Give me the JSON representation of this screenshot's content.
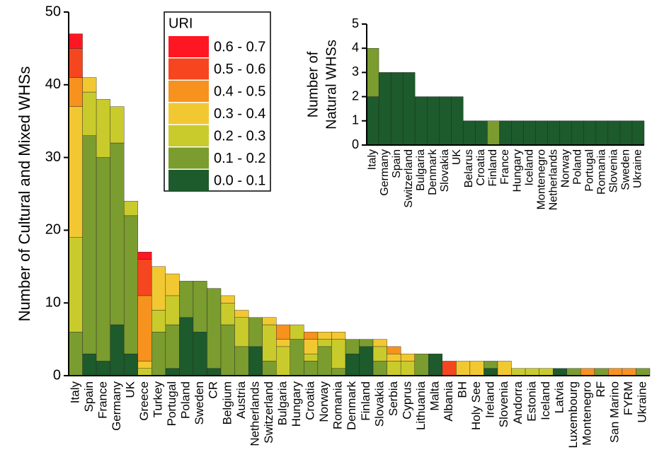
{
  "chart_data": [
    {
      "type": "bar",
      "stacked": true,
      "ylabel": "Number of Cultural and Mixed WHSs",
      "legend_title": "URI",
      "ylim": [
        0,
        50
      ],
      "yticks": [
        0,
        10,
        20,
        30,
        40,
        50
      ],
      "categories": [
        "Italy",
        "Spain",
        "France",
        "Germany",
        "UK",
        "Greece",
        "Turkey",
        "Portugal",
        "Poland",
        "Sweden",
        "CR",
        "Belgium",
        "Austria",
        "Netherlands",
        "Switzerland",
        "Bulgaria",
        "Hungary",
        "Croatia",
        "Norway",
        "Romania",
        "Denmark",
        "Finland",
        "Slovakia",
        "Serbia",
        "Cyprus",
        "Lithuania",
        "Malta",
        "Albania",
        "BH",
        "Holy See",
        "Ireland",
        "Slovenia",
        "Andorra",
        "Estonia",
        "Iceland",
        "Latvia",
        "Luxembourg",
        "Montenegro",
        "RF",
        "San Marino",
        "FYRM",
        "Ukraine"
      ],
      "series": [
        {
          "name": "0.0 - 0.1",
          "color": "#1d5a2c",
          "values": [
            0,
            3,
            2,
            7,
            3,
            0,
            0,
            1,
            8,
            6,
            1,
            0,
            0,
            4,
            0,
            0,
            0,
            0,
            0,
            0,
            3,
            4,
            0,
            0,
            0,
            0,
            3,
            0,
            0,
            0,
            1,
            0,
            0,
            0,
            0,
            1,
            0,
            0,
            0,
            0,
            0,
            0
          ]
        },
        {
          "name": "0.1 - 0.2",
          "color": "#7b9c2f",
          "values": [
            6,
            30,
            28,
            25,
            19,
            0,
            6,
            6,
            5,
            7,
            11,
            7,
            4,
            4,
            2,
            0,
            5,
            2,
            4,
            1,
            2,
            1,
            2,
            0,
            0,
            3,
            0,
            0,
            0,
            0,
            1,
            0,
            0,
            0,
            0,
            0,
            1,
            0,
            1,
            0,
            0,
            1
          ]
        },
        {
          "name": "0.2 - 0.3",
          "color": "#c9cb2c",
          "values": [
            13,
            6,
            8,
            5,
            2,
            1,
            3,
            4,
            0,
            0,
            0,
            3,
            4,
            0,
            5,
            4,
            2,
            1,
            1,
            4,
            0,
            0,
            2,
            2,
            2,
            0,
            0,
            0,
            0,
            0,
            0,
            0,
            1,
            1,
            1,
            0,
            0,
            0,
            0,
            0,
            0,
            0
          ]
        },
        {
          "name": "0.3 - 0.4",
          "color": "#f2c832",
          "values": [
            18,
            2,
            0,
            0,
            0,
            1,
            6,
            3,
            0,
            0,
            0,
            1,
            1,
            0,
            1,
            1,
            0,
            2,
            1,
            1,
            0,
            0,
            1,
            1,
            1,
            0,
            0,
            0,
            2,
            2,
            0,
            2,
            0,
            0,
            0,
            0,
            0,
            0,
            0,
            0,
            0,
            0
          ]
        },
        {
          "name": "0.4 - 0.5",
          "color": "#f7921e",
          "values": [
            4,
            0,
            0,
            0,
            0,
            9,
            0,
            0,
            0,
            0,
            0,
            0,
            0,
            0,
            0,
            2,
            0,
            1,
            0,
            0,
            0,
            0,
            0,
            1,
            0,
            0,
            0,
            0,
            0,
            0,
            0,
            0,
            0,
            0,
            0,
            0,
            0,
            1,
            0,
            1,
            1,
            0
          ]
        },
        {
          "name": "0.5 - 0.6",
          "color": "#f5461f",
          "values": [
            4,
            0,
            0,
            0,
            0,
            5,
            0,
            0,
            0,
            0,
            0,
            0,
            0,
            0,
            0,
            0,
            0,
            0,
            0,
            0,
            0,
            0,
            0,
            0,
            0,
            0,
            0,
            2,
            0,
            0,
            0,
            0,
            0,
            0,
            0,
            0,
            0,
            0,
            0,
            0,
            0,
            0
          ]
        },
        {
          "name": "0.6 - 0.7",
          "color": "#fe1722",
          "values": [
            2,
            0,
            0,
            0,
            0,
            1,
            0,
            0,
            0,
            0,
            0,
            0,
            0,
            0,
            0,
            0,
            0,
            0,
            0,
            0,
            0,
            0,
            0,
            0,
            0,
            0,
            0,
            0,
            0,
            0,
            0,
            0,
            0,
            0,
            0,
            0,
            0,
            0,
            0,
            0,
            0,
            0
          ]
        }
      ]
    },
    {
      "type": "bar",
      "stacked": true,
      "ylabel": [
        "Number of",
        "Natural WHSs"
      ],
      "ylim": [
        0,
        5
      ],
      "yticks": [
        0,
        1,
        2,
        3,
        4,
        5
      ],
      "categories": [
        "Italy",
        "Germany",
        "Spain",
        "Switzerland",
        "Bulgaria",
        "Denmark",
        "Slovakia",
        "UK",
        "Belarus",
        "Croatia",
        "Finland",
        "France",
        "Hungary",
        "Iceland",
        "Montenegro",
        "Netherlands",
        "Norway",
        "Poland",
        "Portugal",
        "Romania",
        "Slovenia",
        "Sweden",
        "Ukraine"
      ],
      "series": [
        {
          "color": "#1d5a2c",
          "values": [
            2,
            3,
            3,
            3,
            2,
            2,
            2,
            2,
            1,
            1,
            0,
            1,
            1,
            1,
            1,
            1,
            1,
            1,
            1,
            1,
            1,
            1,
            1
          ]
        },
        {
          "color": "#7b9c2f",
          "values": [
            2,
            0,
            0,
            0,
            0,
            0,
            0,
            0,
            0,
            0,
            1,
            0,
            0,
            0,
            0,
            0,
            0,
            0,
            0,
            0,
            0,
            0,
            0
          ]
        }
      ]
    }
  ]
}
